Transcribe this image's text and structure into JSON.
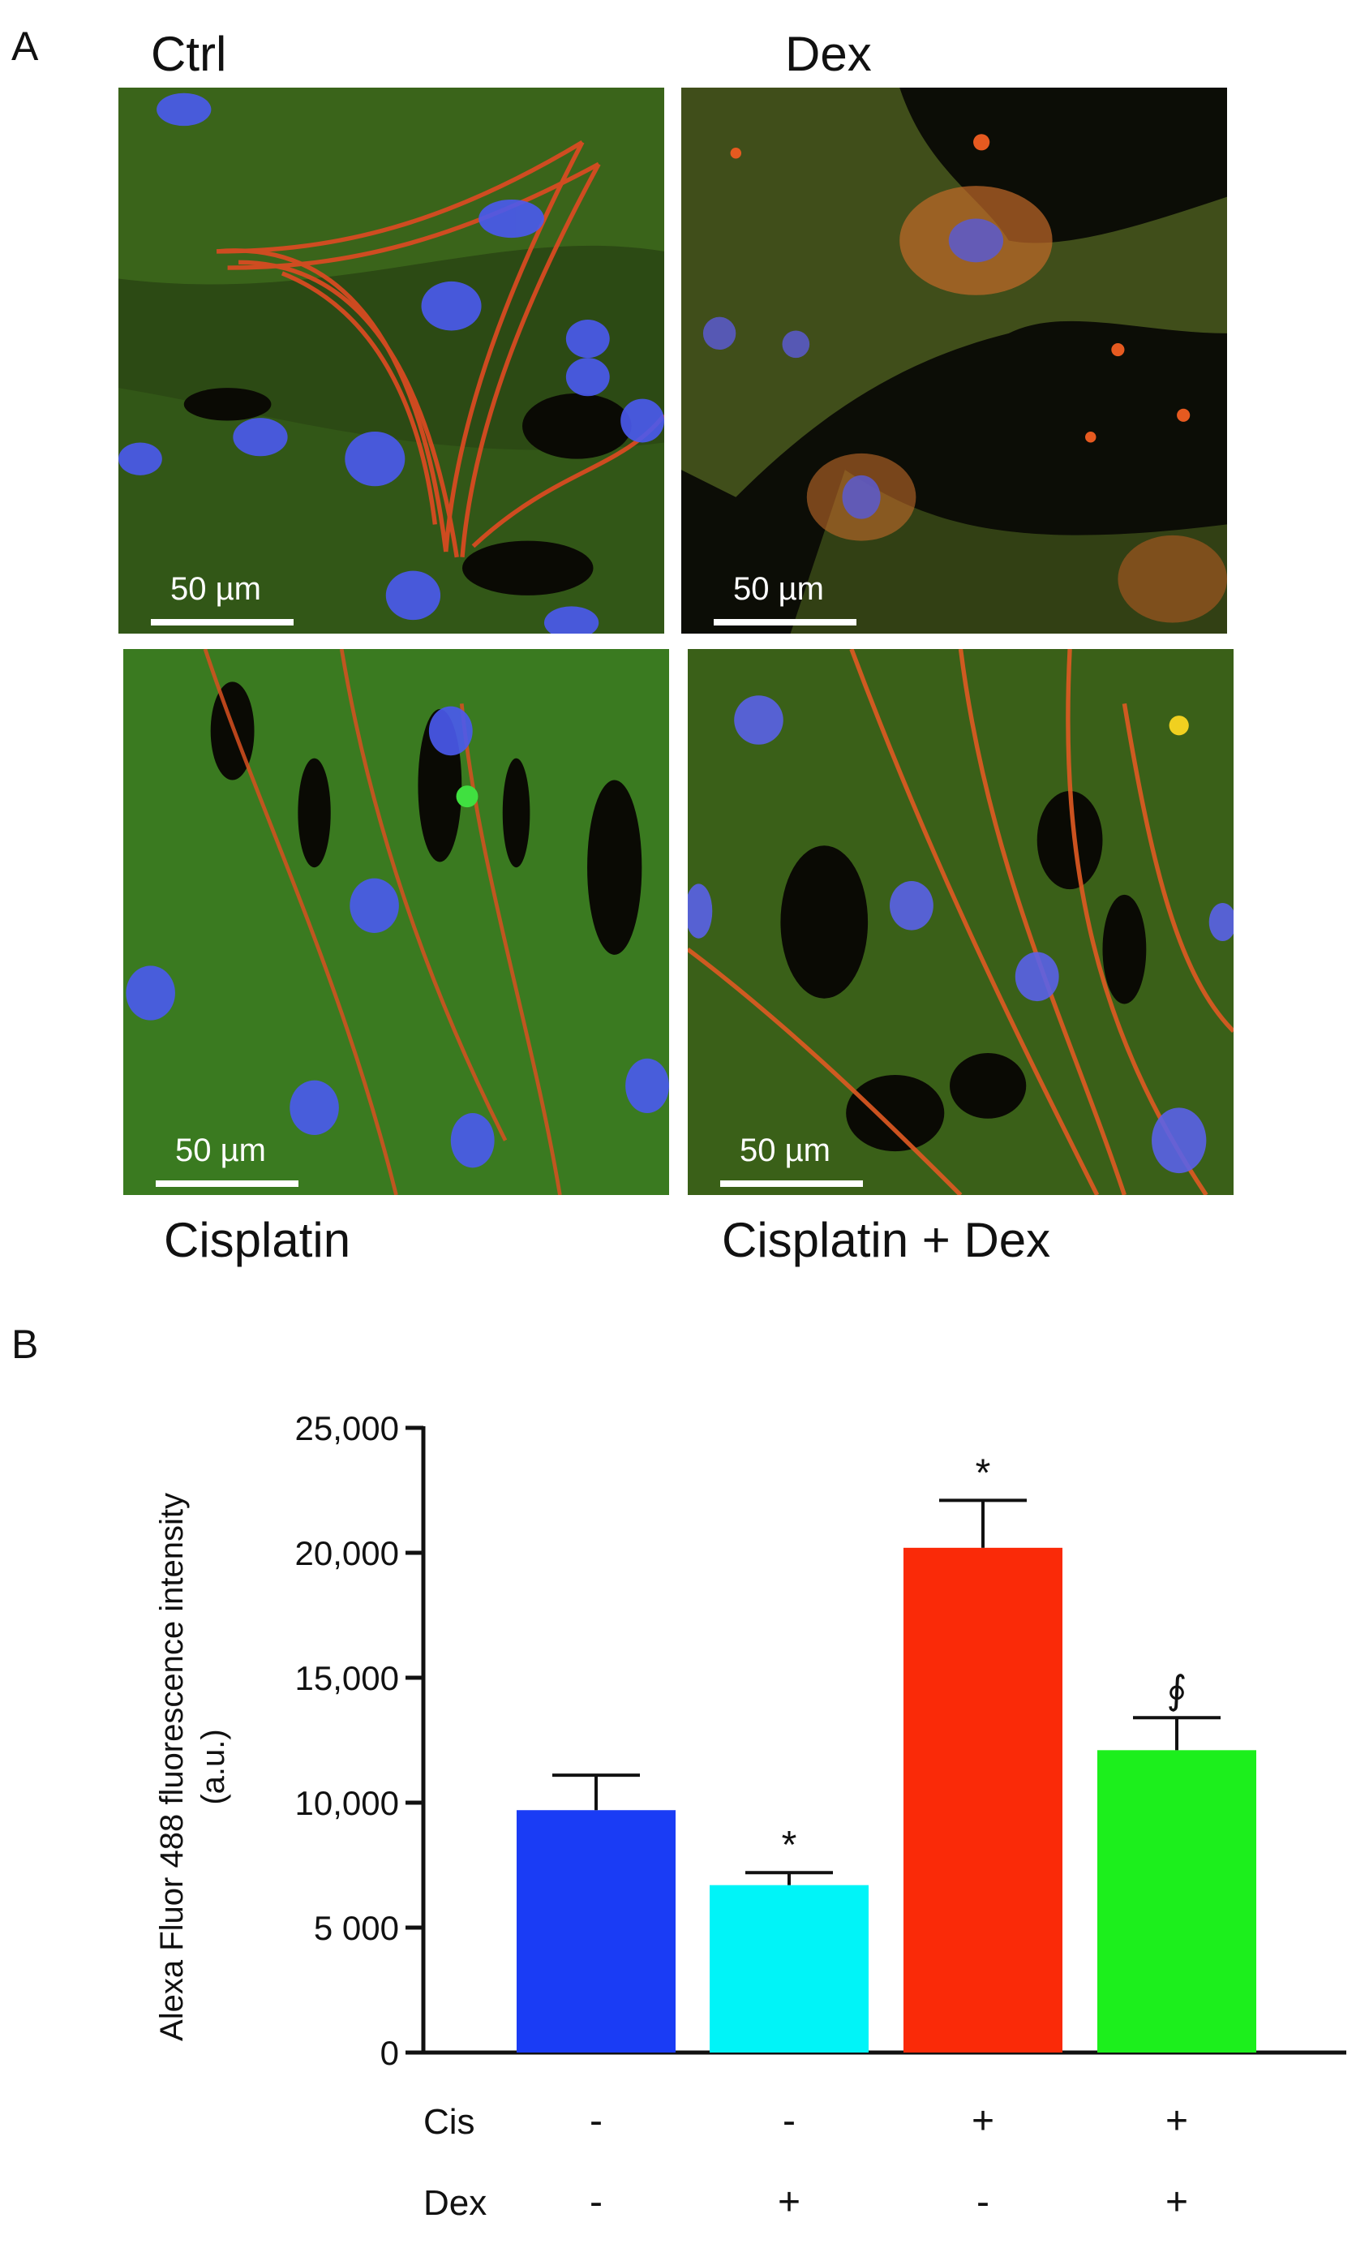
{
  "figure": {
    "panel_a": {
      "letter": "A",
      "images": [
        {
          "label": "Ctrl",
          "scale_text": "50 µm"
        },
        {
          "label": "Dex",
          "scale_text": "50 µm"
        },
        {
          "label": "Cisplatin",
          "scale_text": "50 µm"
        },
        {
          "label": "Cisplatin + Dex",
          "scale_text": "50 µm"
        }
      ]
    },
    "panel_b": {
      "letter": "B"
    }
  },
  "chart_data": {
    "type": "bar",
    "title": "",
    "ylabel_line1": "Alexa Fluor 488 fluorescence intensity",
    "ylabel_line2": "(a.u.)",
    "ylim": [
      0,
      25000
    ],
    "yticks": [
      0,
      5000,
      10000,
      15000,
      20000,
      25000
    ],
    "ytick_labels": [
      "0",
      "5 000",
      "10,000",
      "15,000",
      "20,000",
      "25,000"
    ],
    "categories": [
      "Ctrl",
      "Dex",
      "Cisplatin",
      "Cisplatin + Dex"
    ],
    "values": [
      9700,
      6700,
      20200,
      12100
    ],
    "errors": [
      1400,
      500,
      1900,
      1300
    ],
    "colors": [
      "#1a3cf5",
      "#00f4f8",
      "#fa2a08",
      "#1cef1c"
    ],
    "annotations": [
      "",
      "*",
      "*",
      "∮"
    ],
    "conditions": [
      {
        "name": "Cis",
        "values": [
          "-",
          "-",
          "+",
          "+"
        ]
      },
      {
        "name": "Dex",
        "values": [
          "-",
          "+",
          "-",
          "+"
        ]
      }
    ]
  }
}
